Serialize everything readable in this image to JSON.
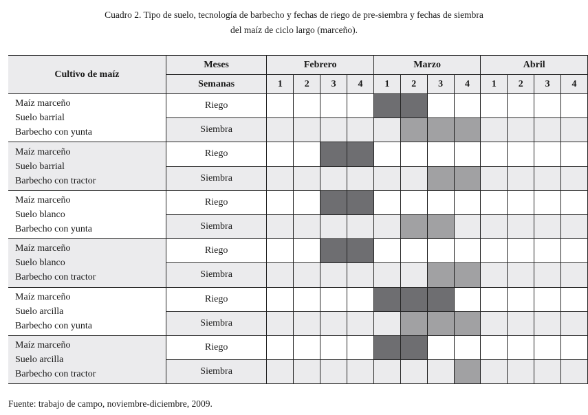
{
  "caption": {
    "line1": "Cuadro 2. Tipo de suelo, tecnología de barbecho y fechas de riego de pre-siembra y fechas de siembra",
    "line2": "del maíz de ciclo largo (marceño)."
  },
  "table": {
    "header_crop": "Cultivo de maíz",
    "header_months_label": "Meses",
    "header_weeks_label": "Semanas",
    "months": [
      "Febrero",
      "Marzo",
      "Abril"
    ],
    "weeks": [
      "1",
      "2",
      "3",
      "4",
      "1",
      "2",
      "3",
      "4",
      "1",
      "2",
      "3",
      "4"
    ],
    "colors": {
      "riego_fill": "#6e6e71",
      "siembra_fill": "#a1a1a3",
      "shade": "#ebebed"
    },
    "groups": [
      {
        "lines": [
          "Maíz marceño",
          "Suelo barrial",
          "Barbecho con yunta"
        ],
        "riego_label": "Riego",
        "siembra_label": "Siembra",
        "riego_weeks": [
          5,
          6
        ],
        "siembra_weeks": [
          6,
          7,
          8
        ]
      },
      {
        "lines": [
          "Maíz marceño",
          "Suelo barrial",
          "Barbecho con tractor"
        ],
        "riego_label": "Riego",
        "siembra_label": "Siembra",
        "riego_weeks": [
          3,
          4
        ],
        "siembra_weeks": [
          7,
          8
        ]
      },
      {
        "lines": [
          "Maíz marceño",
          "Suelo blanco",
          "Barbecho con yunta"
        ],
        "riego_label": "Riego",
        "siembra_label": "Siembra",
        "riego_weeks": [
          3,
          4
        ],
        "siembra_weeks": [
          6,
          7
        ]
      },
      {
        "lines": [
          "Maíz marceño",
          "Suelo blanco",
          "Barbecho con tractor"
        ],
        "riego_label": "Riego",
        "siembra_label": "Siembra",
        "riego_weeks": [
          3,
          4
        ],
        "siembra_weeks": [
          7,
          8
        ]
      },
      {
        "lines": [
          "Maíz marceño",
          "Suelo arcilla",
          "Barbecho con yunta"
        ],
        "riego_label": "Riego",
        "siembra_label": "Siembra",
        "riego_weeks": [
          5,
          6,
          7
        ],
        "siembra_weeks": [
          6,
          7,
          8
        ]
      },
      {
        "lines": [
          "Maíz marceño",
          "Suelo arcilla",
          "Barbecho con tractor"
        ],
        "riego_label": "Riego",
        "siembra_label": "Siembra",
        "riego_weeks": [
          5,
          6
        ],
        "siembra_weeks": [
          8
        ]
      }
    ]
  },
  "source": "Fuente: trabajo de campo, noviembre-diciembre, 2009."
}
